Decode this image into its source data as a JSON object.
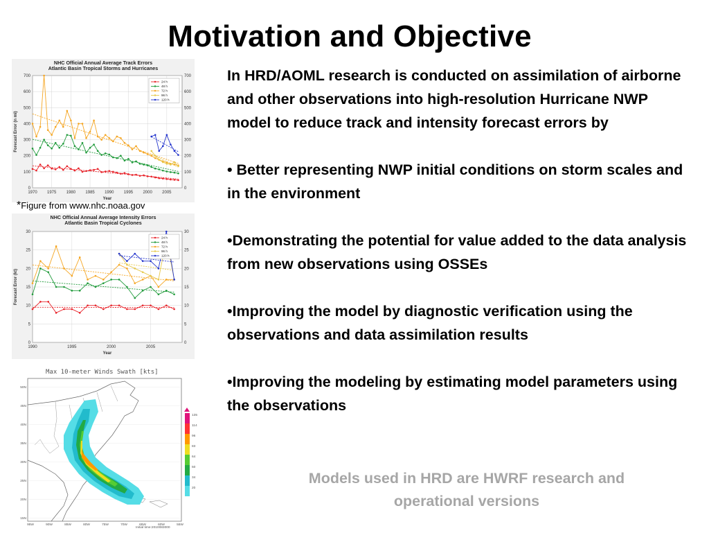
{
  "slide": {
    "title": "Motivation and Objective",
    "caption_star": "*",
    "caption": "Figure from www.nhc.noaa.gov",
    "intro": "In HRD/AOML research is conducted  on  assimilation of airborne  and other observations into high-resolution Hurricane NWP model to reduce track and intensity forecast errors by",
    "bullets": [
      "• Better representing NWP initial conditions on    storm scales and in the environment",
      "•Demonstrating the potential for value added to the data analysis from new observations using OSSEs",
      "•Improving the model by diagnostic verification using the observations and data assimilation results",
      "•Improving the modeling by estimating model parameters using the observations"
    ],
    "footer": "Models used in HRD are HWRF research and operational versions"
  },
  "colors": {
    "text": "#000000",
    "footer": "#a6a6a6",
    "panel_bg": "#f1f1f1",
    "h24": "#e8232a",
    "h48": "#1f9a3a",
    "h72": "#f5a623",
    "h96": "#e6c84a",
    "h120": "#2233cc"
  },
  "chart_data": [
    {
      "type": "line",
      "title": "NHC Official Annual Average Track Errors",
      "subtitle": "Atlantic Basin Tropical Storms and Hurricanes",
      "xlabel": "Year",
      "ylabel": "Forecast Error (n mi)",
      "xlim": [
        1970,
        2009
      ],
      "ylim": [
        0,
        700
      ],
      "x_ticks": [
        "1970",
        "1975",
        "1980",
        "1985",
        "1990",
        "1995",
        "2000",
        "2005"
      ],
      "y_ticks": [
        "0",
        "100",
        "200",
        "300",
        "400",
        "500",
        "600",
        "700"
      ],
      "grid": true,
      "legend_position": "top-right",
      "legend": [
        "24 h",
        "48 h",
        "72 h",
        "96 h",
        "120 h"
      ],
      "series": [
        {
          "name": "24 h",
          "x": [
            1970,
            1971,
            1972,
            1973,
            1974,
            1975,
            1976,
            1977,
            1978,
            1979,
            1980,
            1981,
            1982,
            1983,
            1984,
            1985,
            1986,
            1987,
            1988,
            1989,
            1990,
            1991,
            1992,
            1993,
            1994,
            1995,
            1996,
            1997,
            1998,
            1999,
            2000,
            2001,
            2002,
            2003,
            2004,
            2005,
            2006,
            2007,
            2008
          ],
          "y": [
            118,
            108,
            145,
            122,
            140,
            120,
            115,
            130,
            112,
            135,
            118,
            108,
            122,
            100,
            105,
            110,
            112,
            118,
            98,
            102,
            105,
            100,
            95,
            88,
            92,
            85,
            80,
            82,
            75,
            78,
            72,
            70,
            65,
            60,
            58,
            55,
            52,
            50,
            48
          ]
        },
        {
          "name": "48 h",
          "x": [
            1970,
            1971,
            1972,
            1973,
            1974,
            1975,
            1976,
            1977,
            1978,
            1979,
            1980,
            1981,
            1982,
            1983,
            1984,
            1985,
            1986,
            1987,
            1988,
            1989,
            1990,
            1991,
            1992,
            1993,
            1994,
            1995,
            1996,
            1997,
            1998,
            1999,
            2000,
            2001,
            2002,
            2003,
            2004,
            2005,
            2006,
            2007,
            2008
          ],
          "y": [
            245,
            205,
            250,
            300,
            265,
            245,
            280,
            250,
            275,
            330,
            325,
            260,
            240,
            280,
            220,
            250,
            270,
            230,
            205,
            215,
            208,
            190,
            185,
            200,
            170,
            180,
            158,
            165,
            150,
            145,
            140,
            130,
            120,
            115,
            108,
            102,
            98,
            95,
            90
          ]
        },
        {
          "name": "72 h",
          "x": [
            1970,
            1971,
            1972,
            1973,
            1974,
            1975,
            1976,
            1977,
            1978,
            1979,
            1980,
            1981,
            1982,
            1983,
            1984,
            1985,
            1986,
            1987,
            1988,
            1989,
            1990,
            1991,
            1992,
            1993,
            1994,
            1995,
            1996,
            1997,
            1998,
            1999,
            2000,
            2001,
            2002,
            2003,
            2004,
            2005,
            2006,
            2007,
            2008
          ],
          "y": [
            400,
            320,
            380,
            700,
            360,
            330,
            380,
            420,
            380,
            480,
            420,
            310,
            400,
            400,
            310,
            350,
            420,
            320,
            300,
            330,
            310,
            290,
            320,
            310,
            280,
            265,
            240,
            260,
            230,
            220,
            210,
            200,
            185,
            175,
            165,
            158,
            150,
            145,
            140
          ]
        },
        {
          "name": "96 h",
          "x": [
            2001,
            2002,
            2003,
            2004,
            2005,
            2006,
            2007,
            2008
          ],
          "y": [
            230,
            200,
            175,
            160,
            150,
            145,
            160,
            135
          ]
        },
        {
          "name": "120 h",
          "x": [
            2001,
            2002,
            2003,
            2004,
            2005,
            2006,
            2007,
            2008
          ],
          "y": [
            320,
            330,
            230,
            260,
            330,
            270,
            230,
            205
          ]
        }
      ]
    },
    {
      "type": "line",
      "title": "NHC Official Annual Average Intensity Errors",
      "subtitle": "Atlantic Basin Tropical Cyclones",
      "xlabel": "Year",
      "ylabel": "Forecast Error (kt)",
      "xlim": [
        1990,
        2009
      ],
      "ylim": [
        0,
        30
      ],
      "x_ticks": [
        "1990",
        "1995",
        "2000",
        "2005"
      ],
      "y_ticks": [
        "0",
        "5",
        "10",
        "15",
        "20",
        "25",
        "30"
      ],
      "grid": true,
      "legend_position": "top-right",
      "legend": [
        "24 h",
        "48 h",
        "72 h",
        "96 h",
        "120 h"
      ],
      "series": [
        {
          "name": "24 h",
          "x": [
            1990,
            1991,
            1992,
            1993,
            1994,
            1995,
            1996,
            1997,
            1998,
            1999,
            2000,
            2001,
            2002,
            2003,
            2004,
            2005,
            2006,
            2007,
            2008
          ],
          "y": [
            9,
            11,
            11,
            8,
            9,
            9,
            8,
            10,
            10,
            9,
            10,
            10,
            9,
            9,
            10,
            10,
            9,
            10,
            9
          ]
        },
        {
          "name": "48 h",
          "x": [
            1990,
            1991,
            1992,
            1993,
            1994,
            1995,
            1996,
            1997,
            1998,
            1999,
            2000,
            2001,
            2002,
            2003,
            2004,
            2005,
            2006,
            2007,
            2008
          ],
          "y": [
            13,
            20,
            19,
            15,
            15,
            14,
            14,
            16,
            15,
            16,
            17,
            17,
            15,
            12,
            14,
            15,
            13,
            14,
            13
          ]
        },
        {
          "name": "72 h",
          "x": [
            1990,
            1991,
            1992,
            1993,
            1994,
            1995,
            1996,
            1997,
            1998,
            1999,
            2000,
            2001,
            2002,
            2003,
            2004,
            2005,
            2006,
            2007,
            2008
          ],
          "y": [
            16,
            22,
            20,
            26,
            20,
            18,
            23,
            17,
            18,
            17,
            19,
            21,
            20,
            16,
            17,
            18,
            15,
            17,
            17
          ]
        },
        {
          "name": "96 h",
          "x": [
            2001,
            2002,
            2003,
            2004,
            2005,
            2006,
            2007,
            2008
          ],
          "y": [
            24,
            21,
            20,
            19,
            18,
            17,
            28,
            17
          ]
        },
        {
          "name": "120 h",
          "x": [
            2001,
            2002,
            2003,
            2004,
            2005,
            2006,
            2007,
            2008
          ],
          "y": [
            24,
            22,
            24,
            22,
            22,
            20,
            30,
            17
          ]
        }
      ]
    }
  ],
  "map": {
    "title": "Max 10-meter Winds Swath [kts]",
    "lat_ticks": [
      "50N",
      "45N",
      "40N",
      "35N",
      "30N",
      "25N",
      "20N",
      "15N"
    ],
    "lon_ticks": [
      "95W",
      "90W",
      "85W",
      "80W",
      "75W",
      "70W",
      "65W",
      "60W",
      "55W"
    ],
    "colorbar_labels": [
      "135",
      "114",
      "96",
      "83",
      "64",
      "50",
      "34",
      "20"
    ],
    "colorbar_colors": [
      "#e0147a",
      "#ff3333",
      "#ff9900",
      "#eedd22",
      "#55cc33",
      "#22aa44",
      "#22bbcc",
      "#55dde6"
    ],
    "footnote": "Initial time:2010083000"
  }
}
